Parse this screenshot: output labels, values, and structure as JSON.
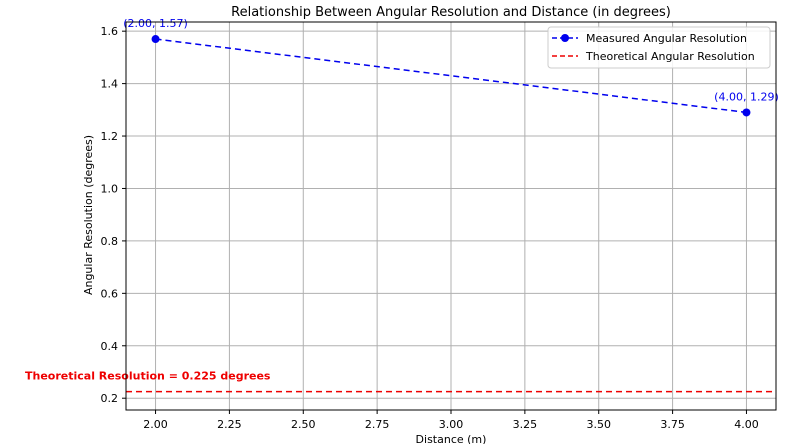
{
  "chart_data": {
    "type": "line",
    "title": "Relationship Between Angular Resolution and Distance (in degrees)",
    "xlabel": "Distance (m)",
    "ylabel": "Angular Resolution (degrees)",
    "xlim": [
      1.9,
      4.1
    ],
    "ylim": [
      0.155,
      1.635
    ],
    "grid": true,
    "legend_position": "top-right",
    "x_ticks": [
      2.0,
      2.25,
      2.5,
      2.75,
      3.0,
      3.25,
      3.5,
      3.75,
      4.0
    ],
    "x_tick_labels": [
      "2.00",
      "2.25",
      "2.50",
      "2.75",
      "3.00",
      "3.25",
      "3.50",
      "3.75",
      "4.00"
    ],
    "y_ticks": [
      0.2,
      0.4,
      0.6,
      0.8,
      1.0,
      1.2,
      1.4,
      1.6
    ],
    "y_tick_labels": [
      "0.2",
      "0.4",
      "0.6",
      "0.8",
      "1.0",
      "1.2",
      "1.4",
      "1.6"
    ],
    "series": [
      {
        "name": "Measured Angular Resolution",
        "color": "#0000ee",
        "style": "dashed-with-markers",
        "x": [
          2.0,
          4.0
        ],
        "y": [
          1.57,
          1.29
        ],
        "point_labels": [
          "(2.00, 1.57)",
          "(4.00, 1.29)"
        ]
      }
    ],
    "reference_lines": [
      {
        "name": "Theoretical Angular Resolution",
        "color": "#ee0000",
        "style": "dashed",
        "y": 0.225,
        "annotation": "Theoretical Resolution = 0.225 degrees"
      }
    ]
  }
}
